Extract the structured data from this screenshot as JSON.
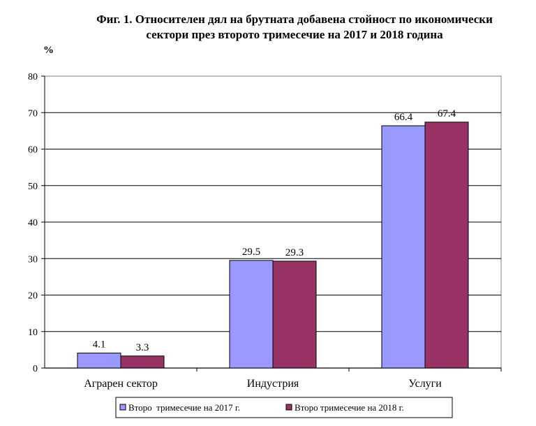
{
  "chart_data": {
    "type": "bar",
    "title_line1": "Фиг. 1. Относителен дял на брутната добавена стойност по икономически",
    "title_line2": "сектори през второто тримесечие на 2017 и 2018 година",
    "unit_label": "%",
    "categories": [
      "Аграрен сектор",
      "Индустрия",
      "Услуги"
    ],
    "series": [
      {
        "name": "Второ  тримесечие на 2017 г.",
        "values": [
          4.1,
          29.5,
          66.4
        ],
        "labels": [
          "4.1",
          "29.5",
          "66.4"
        ],
        "color": "#9999ff"
      },
      {
        "name": "Второ тримесечие на 2018 г.",
        "values": [
          3.3,
          29.3,
          67.4
        ],
        "labels": [
          "3.3",
          "29.3",
          "67.4"
        ],
        "color": "#993366"
      }
    ],
    "ylim": [
      0,
      80
    ],
    "yticks": [
      "0",
      "10",
      "20",
      "30",
      "40",
      "50",
      "60",
      "70",
      "80"
    ],
    "grid": true,
    "legend_position": "bottom"
  }
}
